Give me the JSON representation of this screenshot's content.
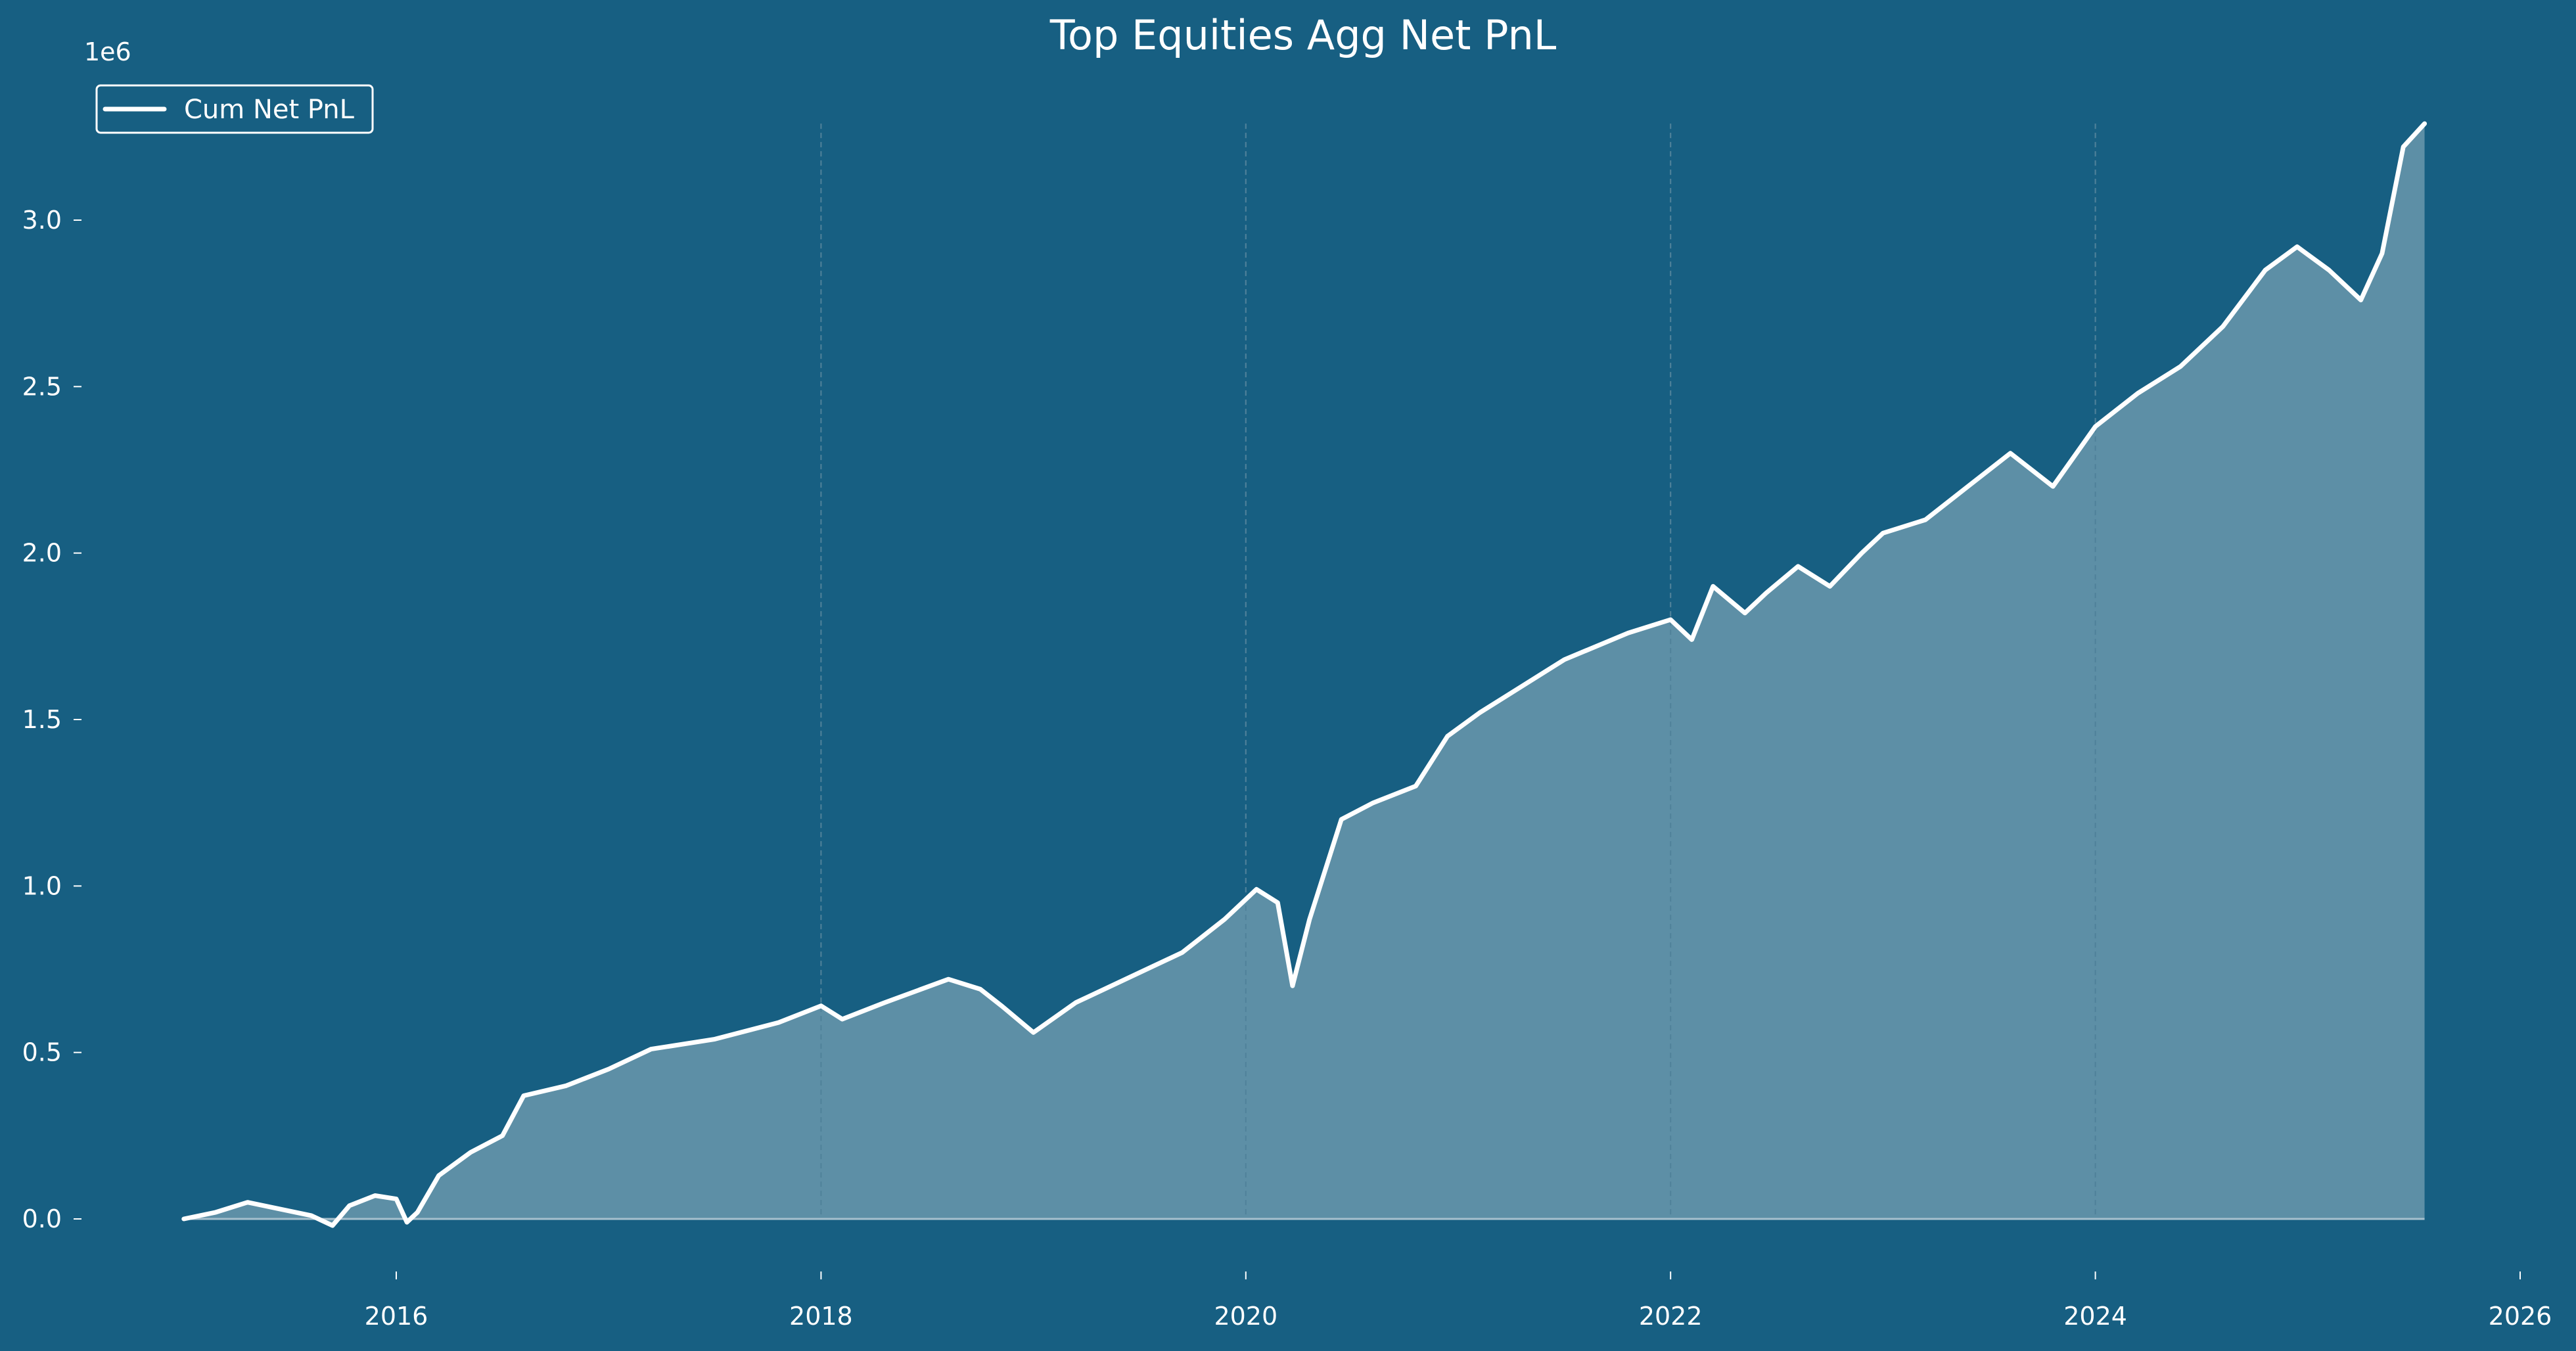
{
  "chart_data": {
    "type": "area",
    "title": "Top Equities Agg Net PnL",
    "xlabel": "",
    "ylabel": "",
    "y_scale_label": "1e6",
    "x_tick_labels": [
      "2016",
      "2018",
      "2020",
      "2022",
      "2024",
      "2026"
    ],
    "x_tick_values": [
      2016,
      2018,
      2020,
      2022,
      2024,
      2026
    ],
    "y_tick_labels": [
      "0.0",
      "0.5",
      "1.0",
      "1.5",
      "2.0",
      "2.5",
      "3.0"
    ],
    "y_tick_values": [
      0,
      500000,
      1000000,
      1500000,
      2000000,
      2500000,
      3000000
    ],
    "xlim": [
      2014.47,
      2026.0
    ],
    "ylim": [
      -135000,
      3290000
    ],
    "legend": {
      "placement": "top-left",
      "entries": [
        "Cum Net PnL"
      ]
    },
    "grid": "vertical dashed lines at x ticks",
    "colors": {
      "background": "#175f82",
      "line": "#ffffff",
      "fill": "#5d8fa6",
      "grid": "#3f7b98"
    },
    "series": [
      {
        "name": "Cum Net PnL",
        "x": [
          2015.0,
          2015.15,
          2015.3,
          2015.45,
          2015.6,
          2015.7,
          2015.78,
          2015.9,
          2016.0,
          2016.05,
          2016.1,
          2016.2,
          2016.35,
          2016.5,
          2016.6,
          2016.8,
          2017.0,
          2017.2,
          2017.5,
          2017.8,
          2018.0,
          2018.1,
          2018.3,
          2018.6,
          2018.75,
          2018.85,
          2019.0,
          2019.2,
          2019.5,
          2019.7,
          2019.9,
          2020.05,
          2020.15,
          2020.22,
          2020.3,
          2020.45,
          2020.6,
          2020.8,
          2020.95,
          2021.1,
          2021.3,
          2021.5,
          2021.8,
          2022.0,
          2022.1,
          2022.2,
          2022.35,
          2022.45,
          2022.6,
          2022.75,
          2022.9,
          2023.0,
          2023.2,
          2023.4,
          2023.6,
          2023.8,
          2024.0,
          2024.2,
          2024.4,
          2024.6,
          2024.8,
          2024.95,
          2025.1,
          2025.25,
          2025.35,
          2025.45,
          2025.55
        ],
        "values": [
          0,
          20000,
          50000,
          30000,
          10000,
          -20000,
          40000,
          70000,
          60000,
          -10000,
          20000,
          130000,
          200000,
          250000,
          370000,
          400000,
          450000,
          510000,
          540000,
          590000,
          640000,
          600000,
          650000,
          720000,
          690000,
          640000,
          560000,
          650000,
          740000,
          800000,
          900000,
          990000,
          950000,
          700000,
          900000,
          1200000,
          1250000,
          1300000,
          1450000,
          1520000,
          1600000,
          1680000,
          1760000,
          1800000,
          1740000,
          1900000,
          1820000,
          1880000,
          1960000,
          1900000,
          2000000,
          2060000,
          2100000,
          2200000,
          2300000,
          2200000,
          2380000,
          2480000,
          2560000,
          2680000,
          2850000,
          2920000,
          2850000,
          2760000,
          2900000,
          3220000,
          3290000
        ]
      }
    ]
  }
}
